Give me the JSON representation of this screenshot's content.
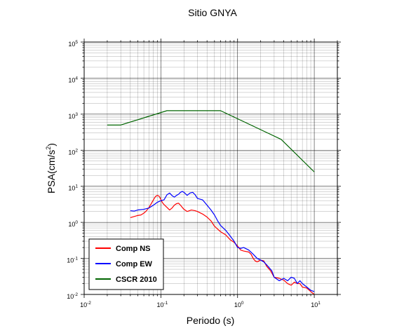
{
  "chart_data": {
    "type": "line",
    "title": "Sitio GNYA",
    "xlabel": "Periodo (s)",
    "ylabel": {
      "base": "PSA(cm/s",
      "sup": "2",
      "close": ")"
    },
    "x_scale": "log",
    "y_scale": "log",
    "xlim": [
      0.01,
      20
    ],
    "ylim": [
      0.01,
      100000
    ],
    "grid": true,
    "legend_position": "bottom-left",
    "x_ticks": [
      {
        "base": "10",
        "exp": "-2",
        "value": 0.01
      },
      {
        "base": "10",
        "exp": "-1",
        "value": 0.1
      },
      {
        "base": "10",
        "exp": "0",
        "value": 1
      },
      {
        "base": "10",
        "exp": "1",
        "value": 10
      }
    ],
    "y_ticks": [
      {
        "base": "10",
        "exp": "-2",
        "value": 0.01
      },
      {
        "base": "10",
        "exp": "-1",
        "value": 0.1
      },
      {
        "base": "10",
        "exp": "0",
        "value": 1
      },
      {
        "base": "10",
        "exp": "1",
        "value": 10
      },
      {
        "base": "10",
        "exp": "2",
        "value": 100
      },
      {
        "base": "10",
        "exp": "3",
        "value": 1000
      },
      {
        "base": "10",
        "exp": "4",
        "value": 10000
      },
      {
        "base": "10",
        "exp": "5",
        "value": 100000
      }
    ],
    "series": [
      {
        "name": "Comp NS",
        "color": "#ff0000",
        "points": [
          [
            0.04,
            1.35
          ],
          [
            0.045,
            1.45
          ],
          [
            0.05,
            1.55
          ],
          [
            0.055,
            1.6
          ],
          [
            0.06,
            1.8
          ],
          [
            0.065,
            2.1
          ],
          [
            0.07,
            2.6
          ],
          [
            0.075,
            3.3
          ],
          [
            0.08,
            4.2
          ],
          [
            0.085,
            5.2
          ],
          [
            0.09,
            5.6
          ],
          [
            0.095,
            5.3
          ],
          [
            0.1,
            4.3
          ],
          [
            0.105,
            3.5
          ],
          [
            0.11,
            3.1
          ],
          [
            0.12,
            2.6
          ],
          [
            0.13,
            2.2
          ],
          [
            0.14,
            2.5
          ],
          [
            0.15,
            3.0
          ],
          [
            0.16,
            3.3
          ],
          [
            0.17,
            3.4
          ],
          [
            0.18,
            3.0
          ],
          [
            0.19,
            2.6
          ],
          [
            0.2,
            2.3
          ],
          [
            0.22,
            2.0
          ],
          [
            0.25,
            2.2
          ],
          [
            0.28,
            2.1
          ],
          [
            0.3,
            2.0
          ],
          [
            0.35,
            1.7
          ],
          [
            0.4,
            1.4
          ],
          [
            0.45,
            1.1
          ],
          [
            0.5,
            0.78
          ],
          [
            0.55,
            0.65
          ],
          [
            0.6,
            0.55
          ],
          [
            0.7,
            0.45
          ],
          [
            0.8,
            0.33
          ],
          [
            0.9,
            0.28
          ],
          [
            1.0,
            0.22
          ],
          [
            1.1,
            0.17
          ],
          [
            1.2,
            0.16
          ],
          [
            1.4,
            0.15
          ],
          [
            1.5,
            0.13
          ],
          [
            1.6,
            0.1
          ],
          [
            1.7,
            0.085
          ],
          [
            1.8,
            0.08
          ],
          [
            2.0,
            0.09
          ],
          [
            2.2,
            0.085
          ],
          [
            2.4,
            0.06
          ],
          [
            2.7,
            0.045
          ],
          [
            3.0,
            0.03
          ],
          [
            3.5,
            0.028
          ],
          [
            4.0,
            0.025
          ],
          [
            4.5,
            0.02
          ],
          [
            5.0,
            0.018
          ],
          [
            5.5,
            0.022
          ],
          [
            6.0,
            0.02
          ],
          [
            6.5,
            0.02
          ],
          [
            7.0,
            0.016
          ],
          [
            8.0,
            0.015
          ],
          [
            9.0,
            0.012
          ],
          [
            10.0,
            0.01
          ]
        ]
      },
      {
        "name": "Comp EW",
        "color": "#0000ff",
        "points": [
          [
            0.04,
            2.1
          ],
          [
            0.045,
            2.05
          ],
          [
            0.05,
            2.2
          ],
          [
            0.06,
            2.3
          ],
          [
            0.07,
            2.5
          ],
          [
            0.08,
            3.0
          ],
          [
            0.09,
            3.6
          ],
          [
            0.1,
            4.0
          ],
          [
            0.11,
            4.2
          ],
          [
            0.12,
            5.8
          ],
          [
            0.13,
            6.5
          ],
          [
            0.14,
            5.5
          ],
          [
            0.15,
            5.0
          ],
          [
            0.16,
            5.6
          ],
          [
            0.17,
            6.0
          ],
          [
            0.18,
            6.8
          ],
          [
            0.19,
            7.2
          ],
          [
            0.2,
            6.8
          ],
          [
            0.22,
            5.6
          ],
          [
            0.24,
            6.5
          ],
          [
            0.26,
            6.8
          ],
          [
            0.28,
            5.8
          ],
          [
            0.3,
            4.6
          ],
          [
            0.35,
            4.2
          ],
          [
            0.4,
            3.0
          ],
          [
            0.45,
            2.2
          ],
          [
            0.5,
            1.6
          ],
          [
            0.55,
            1.1
          ],
          [
            0.6,
            0.82
          ],
          [
            0.7,
            0.6
          ],
          [
            0.8,
            0.42
          ],
          [
            0.9,
            0.3
          ],
          [
            1.0,
            0.2
          ],
          [
            1.1,
            0.19
          ],
          [
            1.2,
            0.2
          ],
          [
            1.4,
            0.17
          ],
          [
            1.6,
            0.13
          ],
          [
            1.8,
            0.1
          ],
          [
            2.0,
            0.09
          ],
          [
            2.2,
            0.08
          ],
          [
            2.5,
            0.06
          ],
          [
            2.8,
            0.045
          ],
          [
            3.0,
            0.03
          ],
          [
            3.5,
            0.024
          ],
          [
            4.0,
            0.028
          ],
          [
            4.5,
            0.024
          ],
          [
            5.0,
            0.03
          ],
          [
            5.5,
            0.028
          ],
          [
            6.0,
            0.02
          ],
          [
            6.5,
            0.024
          ],
          [
            7.0,
            0.02
          ],
          [
            8.0,
            0.016
          ],
          [
            9.0,
            0.013
          ],
          [
            10.0,
            0.012
          ]
        ]
      },
      {
        "name": "CSCR 2010",
        "color": "#006400",
        "points": [
          [
            0.02,
            500
          ],
          [
            0.03,
            500
          ],
          [
            0.12,
            1250
          ],
          [
            0.6,
            1250
          ],
          [
            3.7,
            200
          ],
          [
            10.0,
            25
          ]
        ]
      }
    ]
  }
}
